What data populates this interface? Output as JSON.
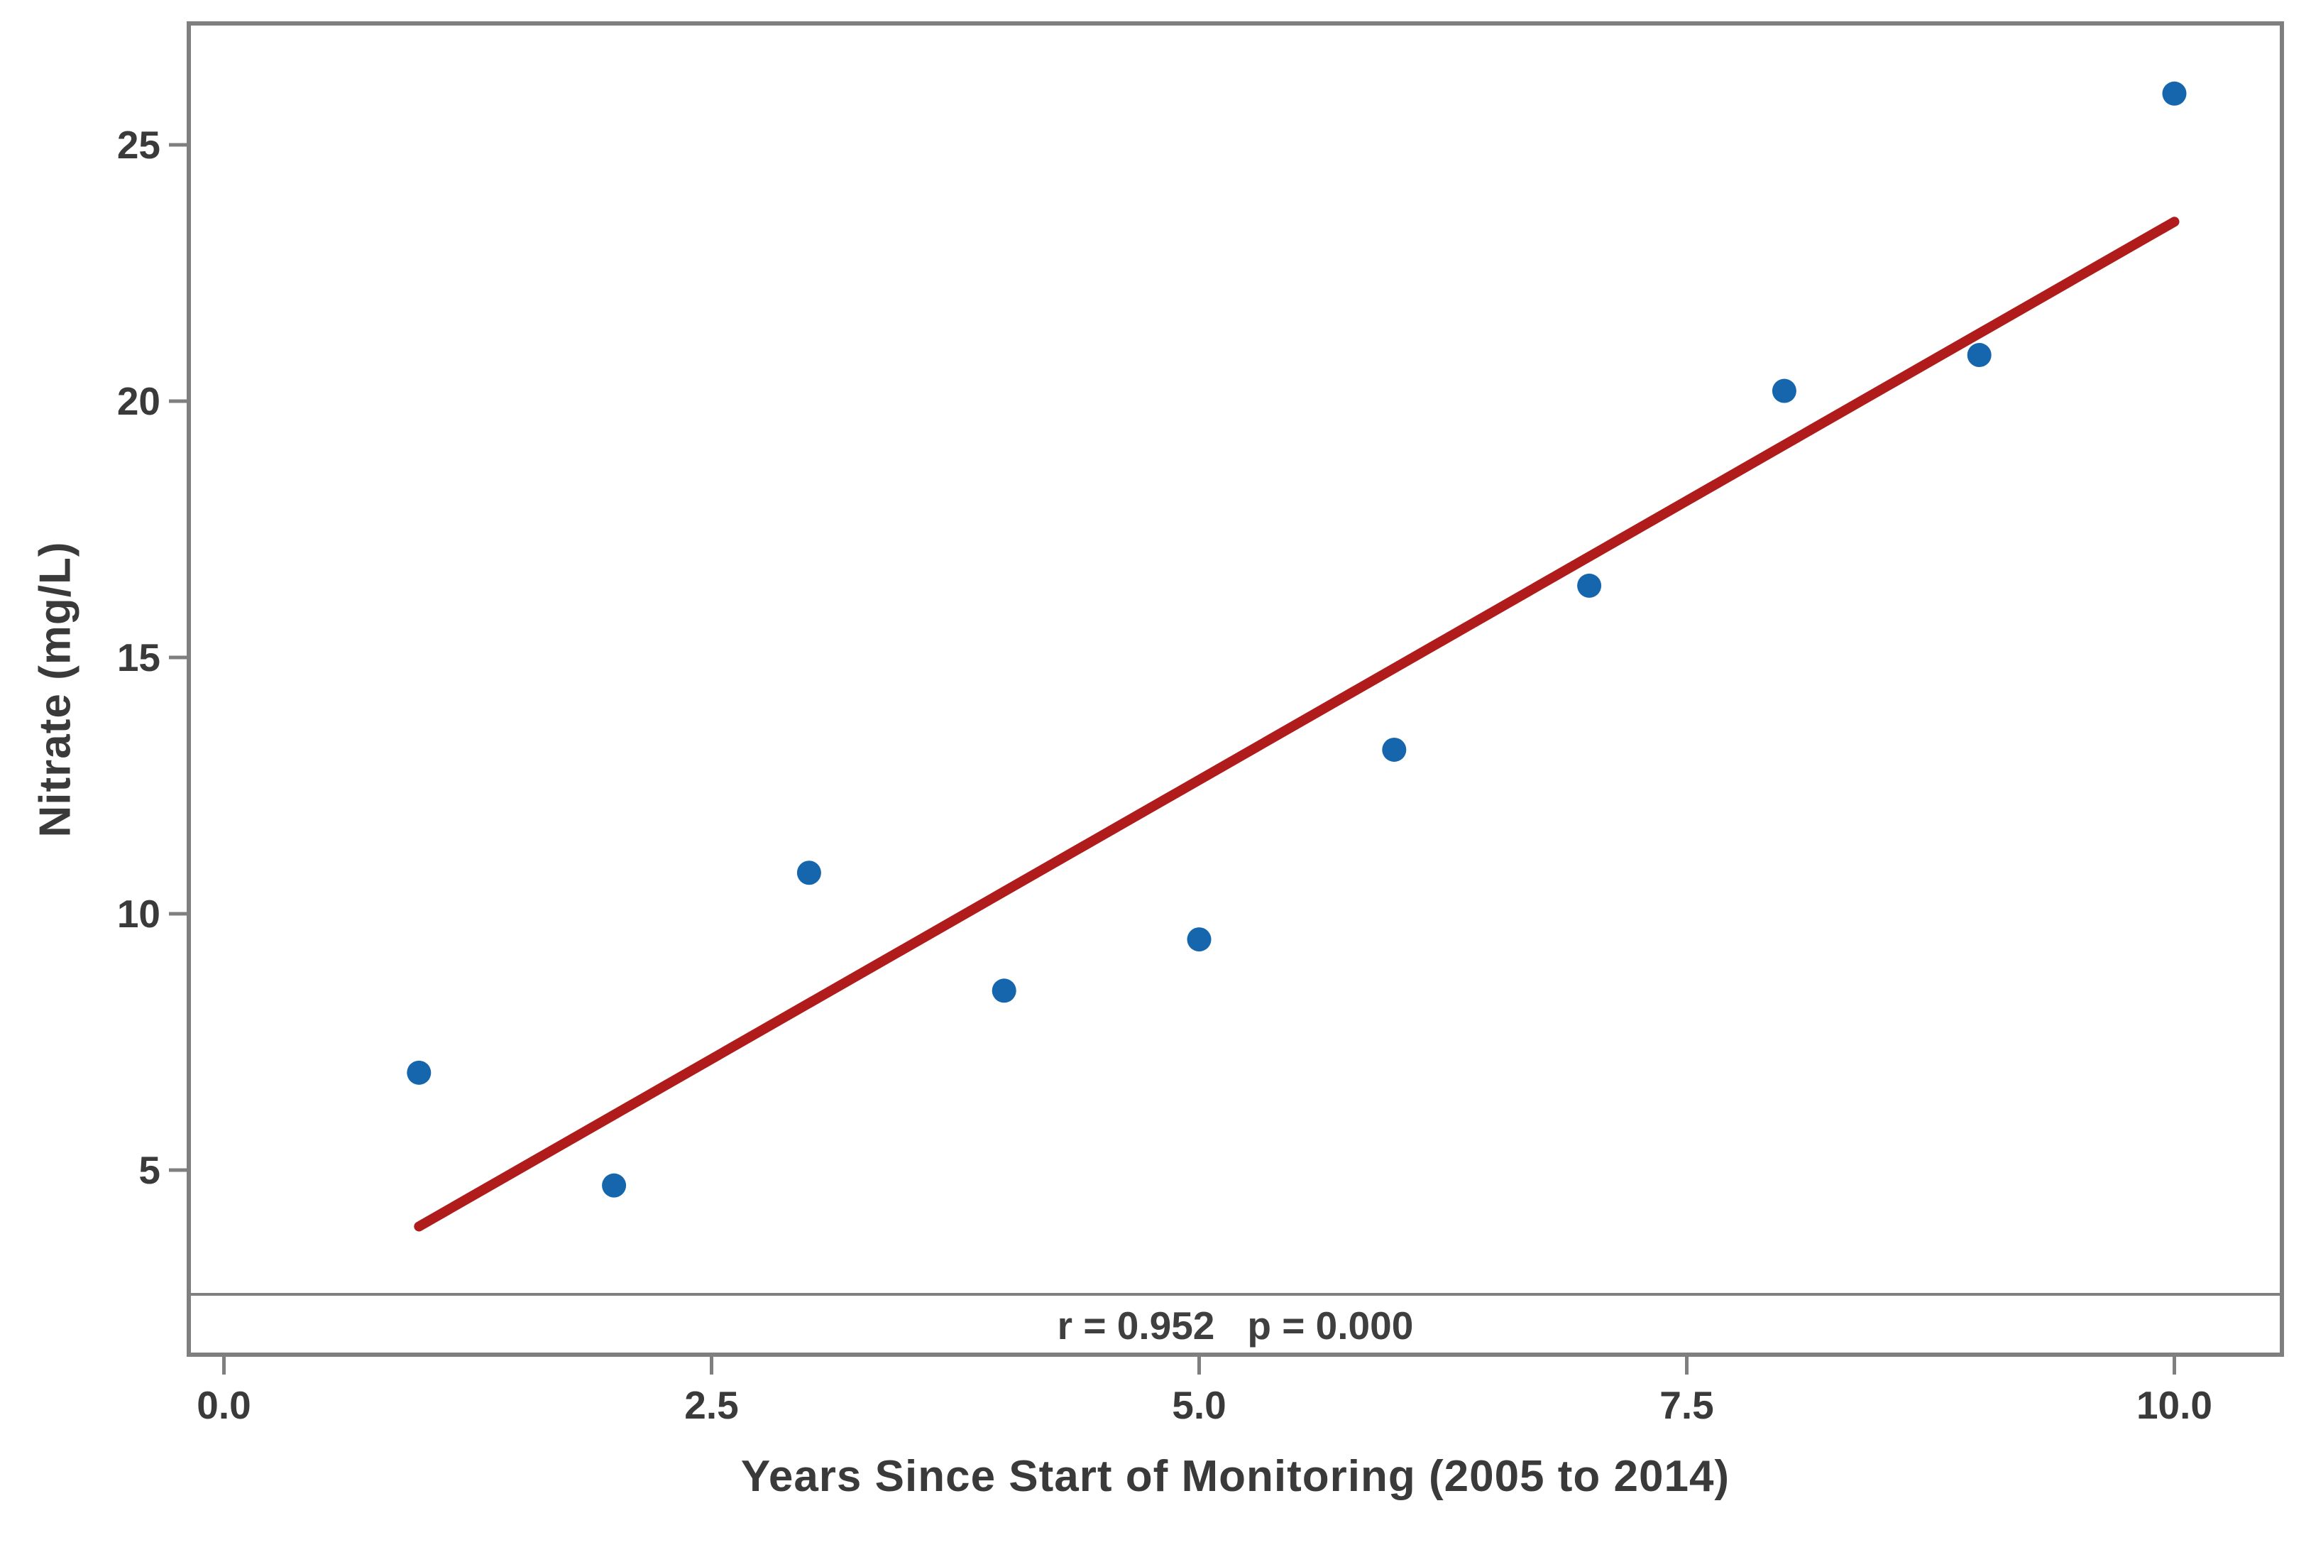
{
  "chart_data": {
    "type": "scatter",
    "title": "",
    "xlabel": "Years Since Start of Monitoring (2005 to 2014)",
    "ylabel": "Nitrate (mg/L)",
    "x_ticks": [
      {
        "value": 0,
        "label": "0.0"
      },
      {
        "value": 2.5,
        "label": "2.5"
      },
      {
        "value": 5,
        "label": "5.0"
      },
      {
        "value": 7.5,
        "label": "7.5"
      },
      {
        "value": 10,
        "label": "10.0"
      }
    ],
    "y_ticks": [
      {
        "value": 5,
        "label": "5"
      },
      {
        "value": 10,
        "label": "10"
      },
      {
        "value": 15,
        "label": "15"
      },
      {
        "value": 20,
        "label": "20"
      },
      {
        "value": 25,
        "label": "25"
      }
    ],
    "xlim": [
      -0.18,
      10.55
    ],
    "ylim": [
      2.4,
      27.4
    ],
    "grid": false,
    "legend": "none",
    "points": [
      {
        "x": 1,
        "y": 6.9
      },
      {
        "x": 2,
        "y": 4.7
      },
      {
        "x": 3,
        "y": 10.8
      },
      {
        "x": 4,
        "y": 8.5
      },
      {
        "x": 5,
        "y": 9.5
      },
      {
        "x": 6,
        "y": 13.2
      },
      {
        "x": 7,
        "y": 16.4
      },
      {
        "x": 8,
        "y": 20.2
      },
      {
        "x": 9,
        "y": 20.9
      },
      {
        "x": 10,
        "y": 26.0
      }
    ],
    "trendline": {
      "x_start": 1,
      "y_start": 3.9,
      "x_end": 10,
      "y_end": 23.5
    },
    "stats_footer": {
      "r_label": "r = 0.952",
      "p_label": "p = 0.000"
    },
    "colors": {
      "point": "#1666AD",
      "trend": "#B01B1B",
      "frame": "#7F7F7F",
      "tick_text": "#3a3a3a",
      "title_text": "#3a3a3a",
      "background": "#FFFFFF"
    }
  }
}
